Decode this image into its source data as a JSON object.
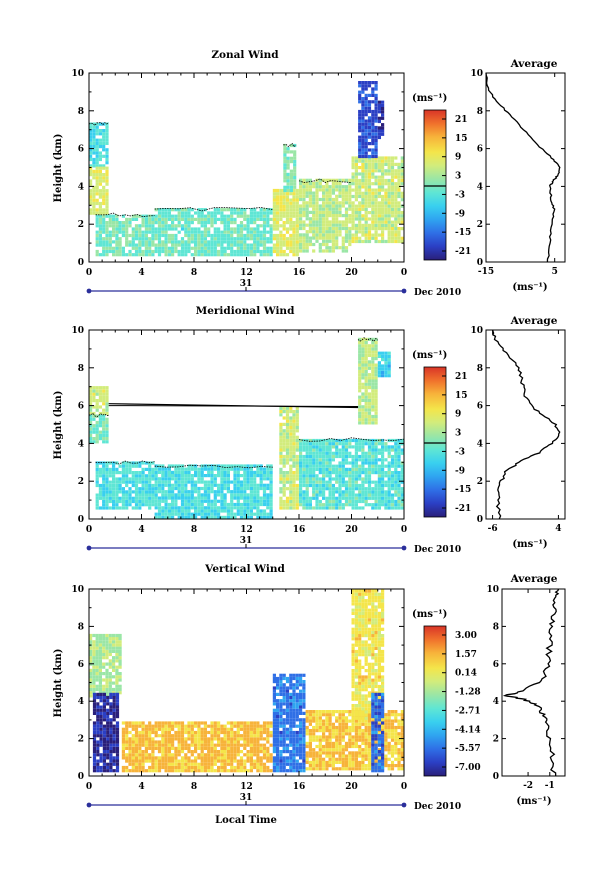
{
  "colors": {
    "colormap": [
      "#2a1f7a",
      "#2b3fc4",
      "#2f6fe6",
      "#2fa4f0",
      "#39d0ef",
      "#5fe6d4",
      "#9ae6a6",
      "#d2ec7c",
      "#f4e54a",
      "#f7b33a",
      "#f0712c",
      "#d93427"
    ],
    "contour": "#000000",
    "axis": "#000000"
  },
  "panels": [
    {
      "title": "Zonal Wind",
      "ylabel": "Height (km)",
      "xticks": [
        "0",
        "4",
        "8",
        "12",
        "16",
        "20",
        "0"
      ],
      "yticks": [
        "0",
        "2",
        "4",
        "6",
        "8",
        "10"
      ],
      "date_marker": "31",
      "date_label": "Dec 2010",
      "unit": "(ms⁻¹)",
      "colorbar_ticks": [
        "21",
        "15",
        "9",
        "3",
        "-3",
        "-9",
        "-15",
        "-21"
      ],
      "avg_title": "Average",
      "avg_xticks": [
        "-15",
        "5"
      ],
      "avg_yticks": [
        "0",
        "2",
        "4",
        "6",
        "8",
        "10"
      ],
      "avg_xlabel": "(ms⁻¹)"
    },
    {
      "title": "Meridional Wind",
      "ylabel": "Height (km)",
      "xticks": [
        "0",
        "4",
        "8",
        "12",
        "16",
        "20",
        "0"
      ],
      "yticks": [
        "0",
        "2",
        "4",
        "6",
        "8",
        "10"
      ],
      "date_marker": "31",
      "date_label": "Dec 2010",
      "unit": "(ms⁻¹)",
      "colorbar_ticks": [
        "21",
        "15",
        "9",
        "3",
        "-3",
        "-9",
        "-15",
        "-21"
      ],
      "avg_title": "Average",
      "avg_xticks": [
        "-6",
        "4"
      ],
      "avg_yticks": [
        "0",
        "2",
        "4",
        "6",
        "8",
        "10"
      ],
      "avg_xlabel": "(ms⁻¹)"
    },
    {
      "title": "Vertical Wind",
      "ylabel": "Height (km)",
      "xticks": [
        "0",
        "4",
        "8",
        "12",
        "16",
        "20",
        "0"
      ],
      "yticks": [
        "0",
        "2",
        "4",
        "6",
        "8",
        "10"
      ],
      "date_marker": "31",
      "date_label": "Dec 2010",
      "unit": "(ms⁻¹)",
      "colorbar_ticks": [
        "3.00",
        "1.57",
        "0.14",
        "-1.28",
        "-2.71",
        "-4.14",
        "-5.57",
        "-7.00"
      ],
      "avg_title": "Average",
      "avg_xticks": [
        "-2",
        "-1"
      ],
      "avg_yticks": [
        "0",
        "2",
        "4",
        "6",
        "8",
        "10"
      ],
      "avg_xlabel": "(ms⁻¹)"
    }
  ],
  "xlabel": "Local Time",
  "chart_data": [
    {
      "type": "heatmap",
      "title": "Zonal Wind",
      "ylabel": "Height (km)",
      "xlim": [
        0,
        24
      ],
      "ylim": [
        0,
        10
      ],
      "clim": [
        -21,
        21
      ],
      "regions": [
        {
          "x": [
            0,
            1.5
          ],
          "y": [
            5,
            7.3
          ],
          "v": -3
        },
        {
          "x": [
            0,
            1.5
          ],
          "y": [
            2.5,
            5
          ],
          "v": 6
        },
        {
          "x": [
            0.5,
            5
          ],
          "y": [
            0.3,
            2.5
          ],
          "v": 0
        },
        {
          "x": [
            5,
            14
          ],
          "y": [
            0.3,
            2.8
          ],
          "v": -1
        },
        {
          "x": [
            14,
            16
          ],
          "y": [
            0.3,
            3.7
          ],
          "v": 6
        },
        {
          "x": [
            14.8,
            15.8
          ],
          "y": [
            3.7,
            6.2
          ],
          "v": 1
        },
        {
          "x": [
            16,
            20
          ],
          "y": [
            0.5,
            4.3
          ],
          "v": 4
        },
        {
          "x": [
            20,
            24
          ],
          "y": [
            1,
            5.5
          ],
          "v": 5
        },
        {
          "x": [
            20.5,
            22
          ],
          "y": [
            5.5,
            9.5
          ],
          "v": -15
        },
        {
          "x": [
            22,
            22.5
          ],
          "y": [
            6.5,
            8.5
          ],
          "v": -17
        }
      ],
      "contour_level": 0
    },
    {
      "type": "heatmap",
      "title": "Meridional Wind",
      "ylabel": "Height (km)",
      "xlim": [
        0,
        24
      ],
      "ylim": [
        0,
        10
      ],
      "clim": [
        -21,
        21
      ],
      "regions": [
        {
          "x": [
            0,
            1.5
          ],
          "y": [
            5.5,
            7
          ],
          "v": 5
        },
        {
          "x": [
            0,
            1.5
          ],
          "y": [
            4,
            5.5
          ],
          "v": 0
        },
        {
          "x": [
            0.5,
            5
          ],
          "y": [
            0.5,
            3
          ],
          "v": -3
        },
        {
          "x": [
            5,
            14
          ],
          "y": [
            0,
            2.8
          ],
          "v": -3
        },
        {
          "x": [
            14.5,
            16
          ],
          "y": [
            0.5,
            5.8
          ],
          "v": 5
        },
        {
          "x": [
            16,
            24
          ],
          "y": [
            0.5,
            4.2
          ],
          "v": -2
        },
        {
          "x": [
            20.5,
            22
          ],
          "y": [
            5,
            9.5
          ],
          "v": 4
        },
        {
          "x": [
            22,
            23
          ],
          "y": [
            7.5,
            8.8
          ],
          "v": -5
        }
      ],
      "contour_level": 0
    },
    {
      "type": "heatmap",
      "title": "Vertical Wind",
      "ylabel": "Height (km)",
      "xlabel": "Local Time",
      "xlim": [
        0,
        24
      ],
      "ylim": [
        0,
        10
      ],
      "clim": [
        -7.0,
        3.0
      ],
      "regions": [
        {
          "x": [
            0,
            2.5
          ],
          "y": [
            4.2,
            7.5
          ],
          "v": -1.28
        },
        {
          "x": [
            0.3,
            2.3
          ],
          "y": [
            0.2,
            4.3
          ],
          "v": -6.2
        },
        {
          "x": [
            2.5,
            14
          ],
          "y": [
            0.2,
            2.8
          ],
          "v": 0.7
        },
        {
          "x": [
            14,
            16.5
          ],
          "y": [
            0.2,
            5.3
          ],
          "v": -4.8
        },
        {
          "x": [
            16.5,
            24
          ],
          "y": [
            0.3,
            3.5
          ],
          "v": 0.6
        },
        {
          "x": [
            20,
            22.5
          ],
          "y": [
            3,
            9.8
          ],
          "v": 0.0
        },
        {
          "x": [
            21.5,
            22.5
          ],
          "y": [
            0.2,
            4.3
          ],
          "v": -5.0
        }
      ]
    },
    {
      "type": "line",
      "title": "Average",
      "xlabel": "(ms⁻¹)",
      "xlim": [
        -15,
        8
      ],
      "ylim": [
        0,
        10
      ],
      "x": [
        3.0,
        3.5,
        4.2,
        4.8,
        4.0,
        3.6,
        4.6,
        6.0,
        6.5,
        4.2,
        0.0,
        -4.0,
        -8.0,
        -12.0,
        -14.5,
        -15.0
      ],
      "y": [
        0,
        1,
        2,
        2.8,
        3.3,
        4.0,
        4.3,
        4.6,
        5.0,
        5.5,
        6.2,
        7.0,
        7.8,
        8.5,
        9.2,
        10
      ]
    },
    {
      "type": "line",
      "title": "Average",
      "xlabel": "(ms⁻¹)",
      "xlim": [
        -7,
        5
      ],
      "ylim": [
        0,
        10
      ],
      "x": [
        -5.0,
        -5.2,
        -5.0,
        -4.0,
        -2.0,
        1.0,
        3.0,
        4.3,
        3.0,
        0.5,
        -1.0,
        -1.5,
        -2.0,
        -4.0,
        -5.5,
        -6.0
      ],
      "y": [
        0,
        1,
        1.8,
        2.5,
        3.0,
        3.5,
        4.0,
        4.6,
        5.2,
        5.8,
        6.5,
        7.2,
        8.0,
        8.8,
        9.5,
        10
      ]
    },
    {
      "type": "line",
      "title": "Average",
      "xlabel": "(ms⁻¹)",
      "xlim": [
        -3.2,
        -0.3
      ],
      "ylim": [
        0,
        10
      ],
      "x": [
        -0.8,
        -0.9,
        -1.0,
        -1.1,
        -1.3,
        -1.6,
        -2.2,
        -3.0,
        -2.2,
        -1.3,
        -1.1,
        -1.0,
        -0.9,
        -0.8,
        -0.7,
        -0.6
      ],
      "y": [
        0,
        1,
        2,
        2.8,
        3.3,
        3.8,
        4.1,
        4.3,
        4.6,
        5.2,
        6.0,
        7.0,
        8.0,
        8.8,
        9.5,
        10
      ]
    }
  ]
}
